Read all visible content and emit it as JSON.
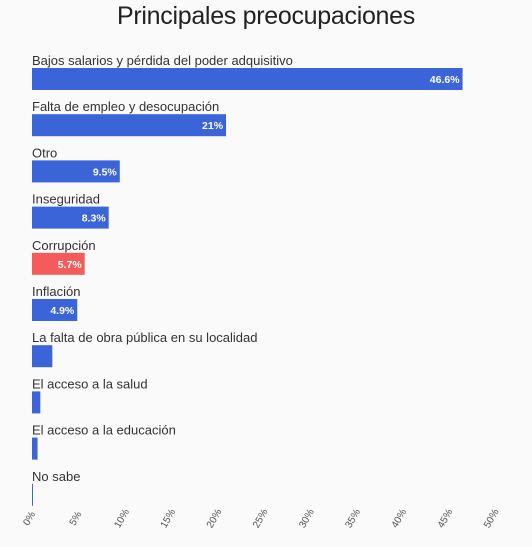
{
  "chart_data": {
    "type": "bar",
    "orientation": "horizontal",
    "title": "Principales preocupaciones",
    "categories": [
      "Bajos salarios y pérdida del poder adquisitivo",
      "Falta de empleo y desocupación",
      "Otro",
      "Inseguridad",
      "Corrupción",
      "Inflación",
      "La falta de obra pública en su localidad",
      "El acceso a la salud",
      "El acceso a la educación",
      "No sabe"
    ],
    "values": [
      46.6,
      21,
      9.5,
      8.3,
      5.7,
      4.9,
      2.2,
      0.9,
      0.6,
      0.1
    ],
    "value_labels": [
      "46.6%",
      "21%",
      "9.5%",
      "8.3%",
      "5.7%",
      "4.9%",
      "",
      "",
      "",
      ""
    ],
    "highlight_index": 4,
    "colors": {
      "bar": "#3a64d8",
      "highlight": "#f45b5b"
    },
    "xlim": [
      0,
      50
    ],
    "x_ticks": [
      "0%",
      "5%",
      "10%",
      "15%",
      "20%",
      "25%",
      "30%",
      "35%",
      "40%",
      "45%",
      "50%"
    ],
    "grid": false
  }
}
